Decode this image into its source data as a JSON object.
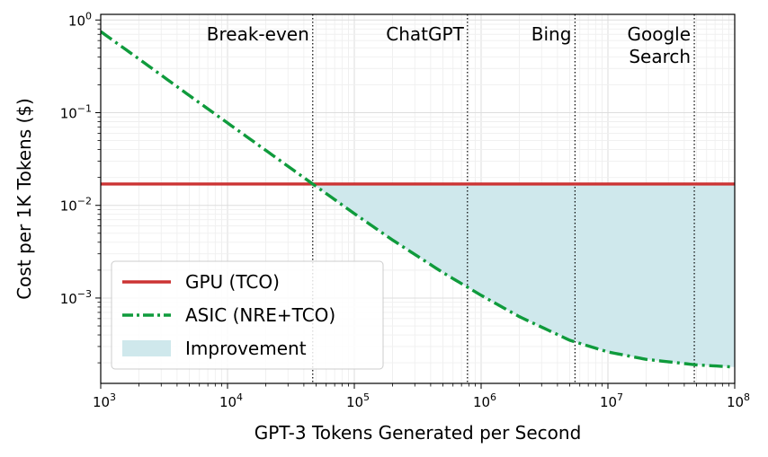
{
  "chart_data": {
    "type": "line",
    "title": "",
    "xlabel": "GPT-3 Tokens Generated per Second",
    "ylabel": "Cost per 1K Tokens ($)",
    "xscale": "log",
    "yscale": "log",
    "xlim": [
      1000,
      100000000
    ],
    "ylim": [
      0.00012,
      1.15
    ],
    "x_ticks": [
      {
        "base": "10",
        "exp": "3"
      },
      {
        "base": "10",
        "exp": "4"
      },
      {
        "base": "10",
        "exp": "5"
      },
      {
        "base": "10",
        "exp": "6"
      },
      {
        "base": "10",
        "exp": "7"
      },
      {
        "base": "10",
        "exp": "8"
      }
    ],
    "y_ticks": [
      {
        "base": "10",
        "exp": "0"
      },
      {
        "base": "10",
        "exp": "−1"
      },
      {
        "base": "10",
        "exp": "−2"
      },
      {
        "base": "10",
        "exp": "−3"
      }
    ],
    "grid": true,
    "legend_position": "bottom-left",
    "series": [
      {
        "name": "GPU (TCO)",
        "color": "#cc3333",
        "style": "solid",
        "x": [
          1000,
          100000000
        ],
        "y": [
          0.017,
          0.017
        ]
      },
      {
        "name": "ASIC (NRE+TCO)",
        "color": "#0f9b3c",
        "style": "dash-dot",
        "x": [
          1000,
          2000,
          5000,
          10000,
          20000,
          47000,
          100000,
          200000,
          500000,
          1000000,
          2000000,
          5000000,
          10000000,
          20000000,
          50000000,
          100000000
        ],
        "y": [
          0.75,
          0.38,
          0.153,
          0.0775,
          0.0393,
          0.017,
          0.00815,
          0.00423,
          0.00188,
          0.00107,
          0.00063,
          0.00035,
          0.000262,
          0.000218,
          0.00019,
          0.00018
        ]
      }
    ],
    "fill": {
      "name": "Improvement",
      "color": "#cfe8ec",
      "between": "GPU (TCO) and ASIC (NRE+TCO) where ASIC < GPU"
    },
    "annotations": [
      {
        "lines": [
          "Break-even"
        ],
        "x": 47000
      },
      {
        "lines": [
          "ChatGPT"
        ],
        "x": 780000
      },
      {
        "lines": [
          "Bing"
        ],
        "x": 5500000
      },
      {
        "lines": [
          "Google",
          "Search"
        ],
        "x": 48000000
      }
    ]
  }
}
